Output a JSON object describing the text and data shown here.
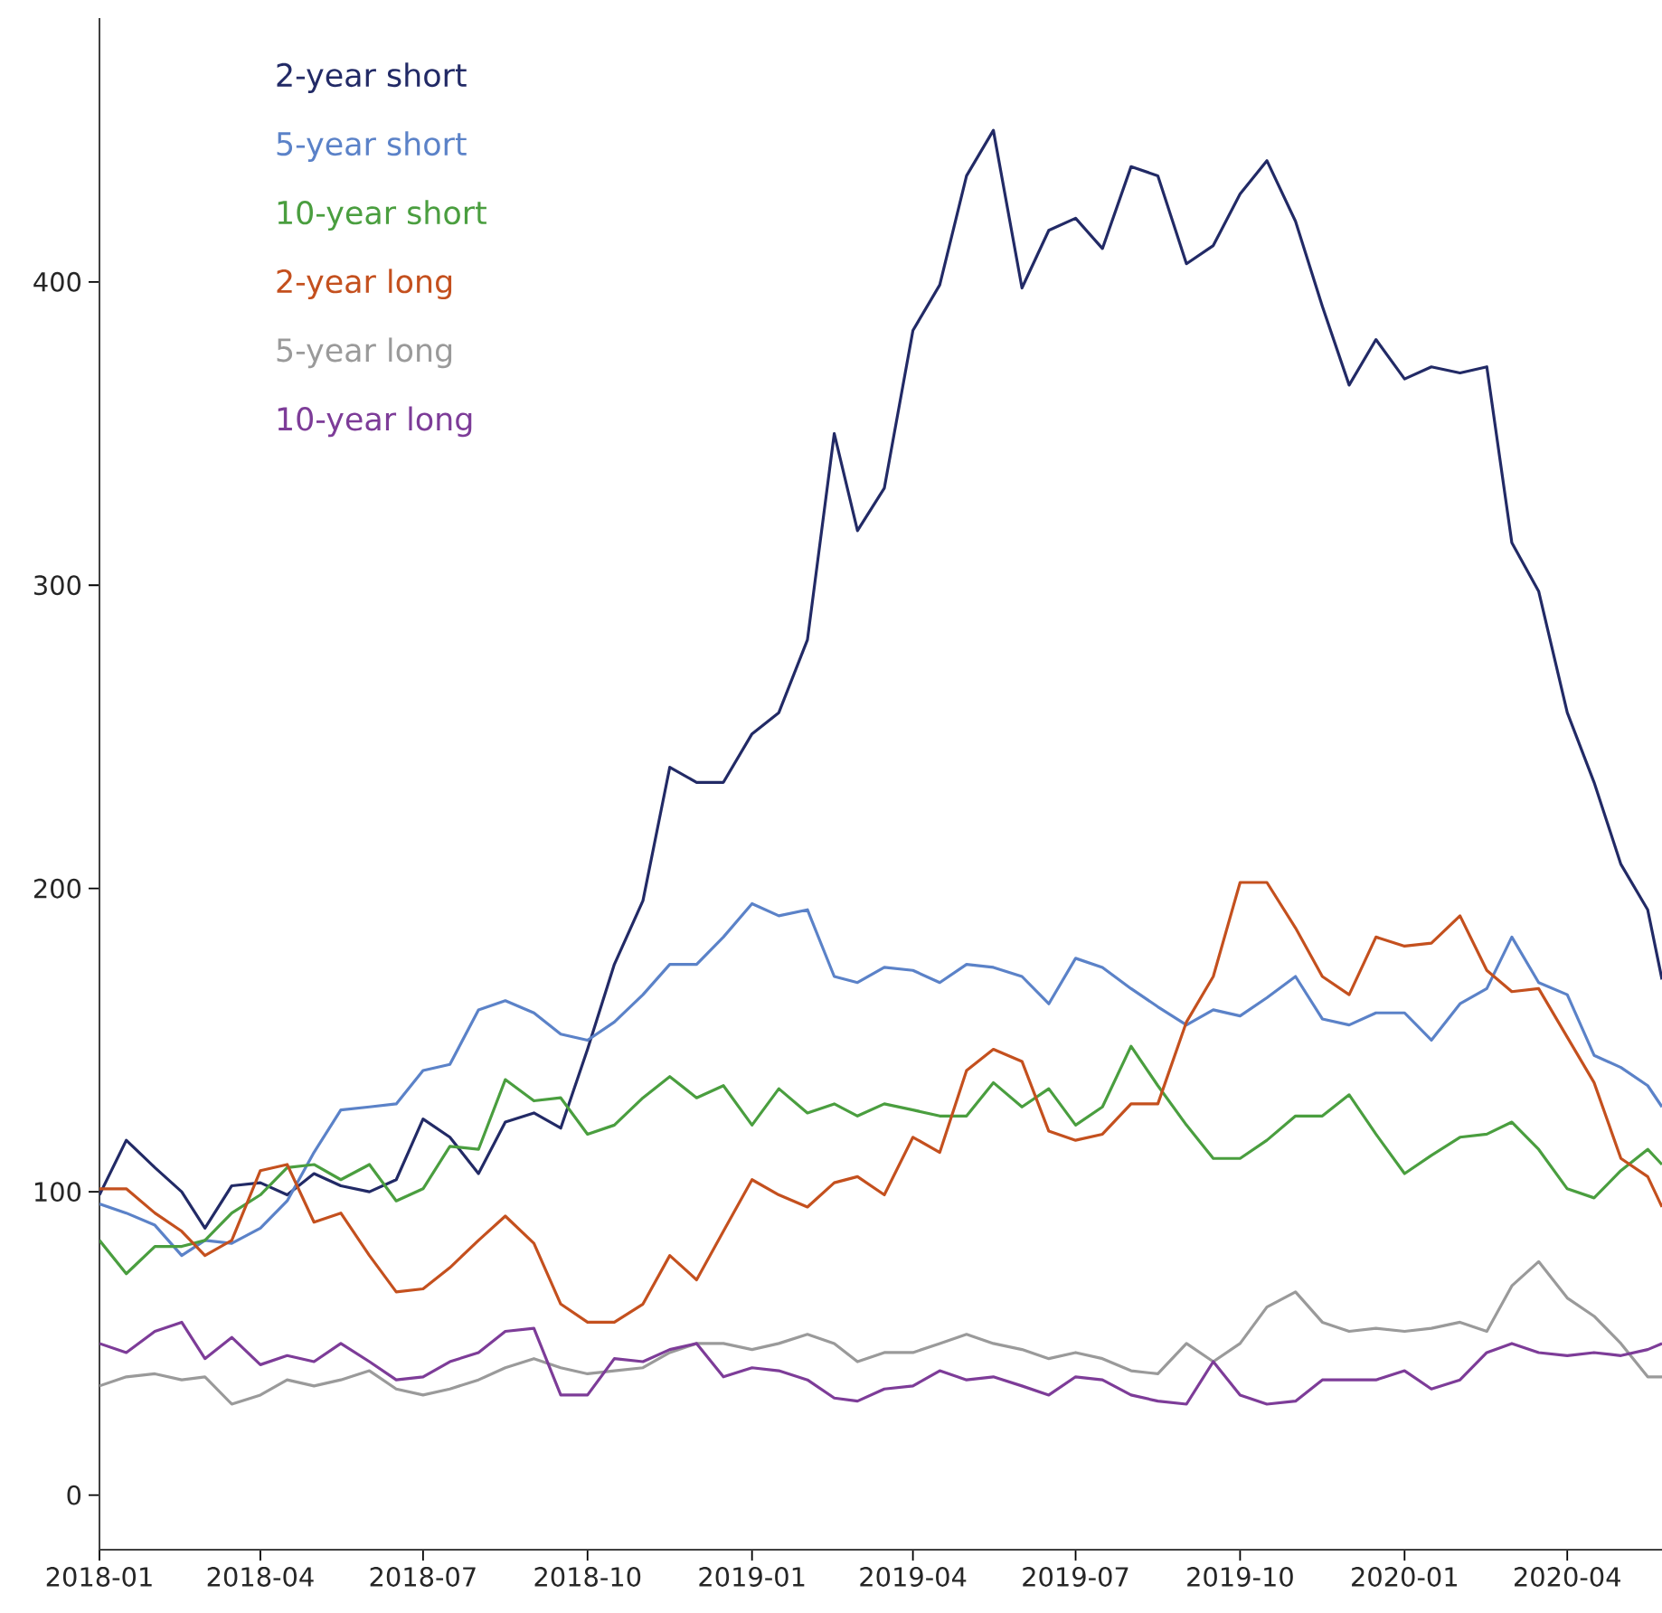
{
  "chart_data": {
    "type": "line",
    "legend": "top left",
    "line_style": "solid",
    "x": [
      "2018-01-01",
      "2018-01-16",
      "2018-02-01",
      "2018-02-16",
      "2018-03-01",
      "2018-03-16",
      "2018-04-01",
      "2018-04-16",
      "2018-05-01",
      "2018-05-16",
      "2018-06-01",
      "2018-06-16",
      "2018-07-01",
      "2018-07-16",
      "2018-08-01",
      "2018-08-16",
      "2018-09-01",
      "2018-09-16",
      "2018-10-01",
      "2018-10-16",
      "2018-11-01",
      "2018-11-16",
      "2018-12-01",
      "2018-12-16",
      "2019-01-01",
      "2019-01-16",
      "2019-02-01",
      "2019-02-16",
      "2019-03-01",
      "2019-03-16",
      "2019-04-01",
      "2019-04-16",
      "2019-05-01",
      "2019-05-16",
      "2019-06-01",
      "2019-06-16",
      "2019-07-01",
      "2019-07-16",
      "2019-08-01",
      "2019-08-16",
      "2019-09-01",
      "2019-09-16",
      "2019-10-01",
      "2019-10-16",
      "2019-11-01",
      "2019-11-16",
      "2019-12-01",
      "2019-12-16",
      "2020-01-01",
      "2020-01-16",
      "2020-02-01",
      "2020-02-16",
      "2020-03-01",
      "2020-03-16",
      "2020-04-01",
      "2020-04-16",
      "2020-05-01",
      "2020-05-16",
      "2020-05-24"
    ],
    "series": [
      {
        "name": "2-year short",
        "color": "#222a66",
        "values": [
          99,
          117,
          108,
          100,
          88,
          102,
          103,
          99,
          106,
          102,
          100,
          104,
          124,
          118,
          106,
          123,
          126,
          121,
          147,
          175,
          196,
          240,
          235,
          235,
          251,
          258,
          282,
          350,
          318,
          332,
          384,
          399,
          435,
          450,
          398,
          417,
          421,
          411,
          438,
          435,
          406,
          412,
          429,
          440,
          420,
          392,
          366,
          381,
          368,
          372,
          370,
          372,
          314,
          298,
          258,
          235,
          208,
          193,
          170
        ]
      },
      {
        "name": "5-year short",
        "color": "#5b82c8",
        "values": [
          96,
          93,
          89,
          79,
          84,
          83,
          88,
          97,
          113,
          127,
          128,
          129,
          140,
          142,
          160,
          163,
          159,
          152,
          150,
          156,
          165,
          175,
          175,
          184,
          195,
          191,
          193,
          171,
          169,
          174,
          173,
          169,
          175,
          174,
          171,
          162,
          177,
          174,
          167,
          161,
          155,
          160,
          158,
          164,
          171,
          157,
          155,
          159,
          159,
          150,
          162,
          167,
          184,
          169,
          165,
          145,
          141,
          135,
          128
        ]
      },
      {
        "name": "10-year short",
        "color": "#4a9e3f",
        "values": [
          84,
          73,
          82,
          82,
          84,
          93,
          99,
          108,
          109,
          104,
          109,
          97,
          101,
          115,
          114,
          137,
          130,
          131,
          119,
          122,
          131,
          138,
          131,
          135,
          122,
          134,
          126,
          129,
          125,
          129,
          127,
          125,
          125,
          136,
          128,
          134,
          122,
          128,
          148,
          135,
          122,
          111,
          111,
          117,
          125,
          125,
          132,
          119,
          106,
          112,
          118,
          119,
          123,
          114,
          101,
          98,
          107,
          114,
          109
        ]
      },
      {
        "name": "2-year long",
        "color": "#c4501e",
        "values": [
          101,
          101,
          93,
          87,
          79,
          84,
          107,
          109,
          90,
          93,
          79,
          67,
          68,
          75,
          84,
          92,
          83,
          63,
          57,
          57,
          63,
          79,
          71,
          87,
          104,
          99,
          95,
          103,
          105,
          99,
          118,
          113,
          140,
          147,
          143,
          120,
          117,
          119,
          129,
          129,
          156,
          171,
          202,
          202,
          187,
          171,
          165,
          184,
          181,
          182,
          191,
          173,
          166,
          167,
          151,
          136,
          111,
          105,
          95
        ]
      },
      {
        "name": "5-year long",
        "color": "#9a9a9a",
        "values": [
          36,
          39,
          40,
          38,
          39,
          30,
          33,
          38,
          36,
          38,
          41,
          35,
          33,
          35,
          38,
          42,
          45,
          42,
          40,
          41,
          42,
          47,
          50,
          50,
          48,
          50,
          53,
          50,
          44,
          47,
          47,
          50,
          53,
          50,
          48,
          45,
          47,
          45,
          41,
          40,
          50,
          44,
          50,
          62,
          67,
          57,
          54,
          55,
          54,
          55,
          57,
          54,
          69,
          77,
          65,
          59,
          50,
          39,
          39
        ]
      },
      {
        "name": "10-year long",
        "color": "#7d3c98",
        "values": [
          50,
          47,
          54,
          57,
          45,
          52,
          43,
          46,
          44,
          50,
          44,
          38,
          39,
          44,
          47,
          54,
          55,
          33,
          33,
          45,
          44,
          48,
          50,
          39,
          42,
          41,
          38,
          32,
          31,
          35,
          36,
          41,
          38,
          39,
          36,
          33,
          39,
          38,
          33,
          31,
          30,
          44,
          33,
          30,
          31,
          38,
          38,
          38,
          41,
          35,
          38,
          47,
          50,
          47,
          46,
          47,
          46,
          48,
          50
        ]
      }
    ],
    "xlim": [
      "2018-01-01",
      "2020-05-24"
    ],
    "xticks": [
      "2018-01",
      "2018-04",
      "2018-07",
      "2018-10",
      "2019-01",
      "2019-04",
      "2019-07",
      "2019-10",
      "2020-01",
      "2020-04"
    ],
    "ylim": [
      -18,
      487
    ],
    "yticks": [
      0,
      100,
      200,
      300,
      400
    ]
  }
}
